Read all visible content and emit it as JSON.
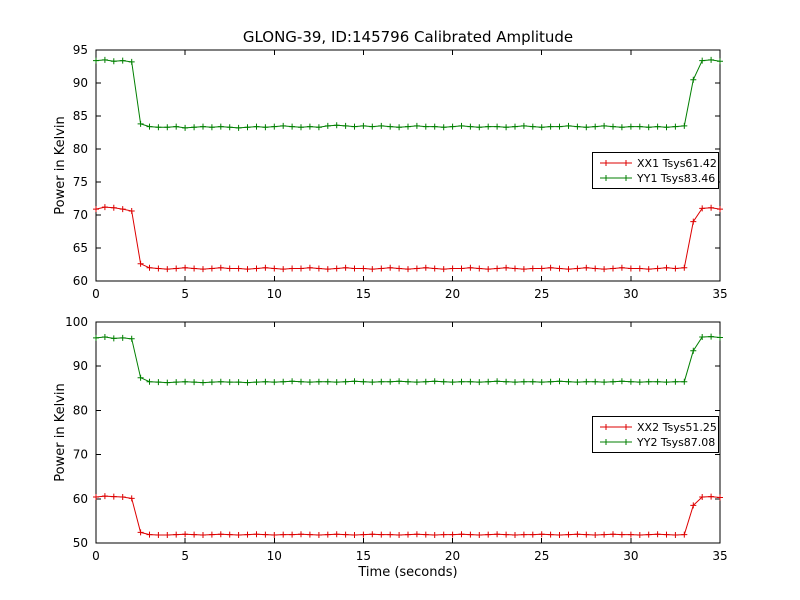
{
  "chart_data": [
    {
      "type": "line",
      "title": "GLONG-39, ID:145796 Calibrated Amplitude",
      "xlabel": "",
      "ylabel": "Power in Kelvin",
      "xlim": [
        0,
        35
      ],
      "ylim": [
        60,
        95
      ],
      "xticks": [
        0,
        5,
        10,
        15,
        20,
        25,
        30,
        35
      ],
      "yticks": [
        60,
        65,
        70,
        75,
        80,
        85,
        90,
        95
      ],
      "grid": false,
      "legend_position": "center-right",
      "x": [
        0,
        0.5,
        1,
        1.5,
        2,
        2.5,
        3,
        3.5,
        4,
        4.5,
        5,
        5.5,
        6,
        6.5,
        7,
        7.5,
        8,
        8.5,
        9,
        9.5,
        10,
        10.5,
        11,
        11.5,
        12,
        12.5,
        13,
        13.5,
        14,
        14.5,
        15,
        15.5,
        16,
        16.5,
        17,
        17.5,
        18,
        18.5,
        19,
        19.5,
        20,
        20.5,
        21,
        21.5,
        22,
        22.5,
        23,
        23.5,
        24,
        24.5,
        25,
        25.5,
        26,
        26.5,
        27,
        27.5,
        28,
        28.5,
        29,
        29.5,
        30,
        30.5,
        31,
        31.5,
        32,
        32.5,
        33,
        33.5,
        34,
        34.5,
        35
      ],
      "series": [
        {
          "name": "XX1 Tsys61.42",
          "color": "#dd0000",
          "marker": "+",
          "values": [
            70.9,
            71.2,
            71.1,
            70.9,
            70.6,
            62.6,
            62.0,
            61.9,
            61.8,
            61.9,
            62.0,
            61.9,
            61.8,
            61.9,
            62.0,
            61.9,
            61.9,
            61.8,
            61.9,
            62.0,
            61.9,
            61.8,
            61.9,
            61.9,
            62.0,
            61.9,
            61.8,
            61.9,
            62.0,
            61.9,
            61.9,
            61.8,
            61.9,
            62.0,
            61.9,
            61.8,
            61.9,
            62.0,
            61.9,
            61.8,
            61.9,
            61.9,
            62.0,
            61.9,
            61.8,
            61.9,
            62.0,
            61.9,
            61.8,
            61.9,
            61.9,
            62.0,
            61.9,
            61.8,
            61.9,
            62.0,
            61.9,
            61.8,
            61.9,
            62.0,
            61.9,
            61.9,
            61.8,
            61.9,
            62.0,
            61.9,
            62.0,
            69.0,
            71.0,
            71.1,
            70.9
          ]
        },
        {
          "name": "YY1 Tsys83.46",
          "color": "#007f00",
          "marker": "+",
          "values": [
            93.4,
            93.5,
            93.3,
            93.4,
            93.2,
            83.8,
            83.4,
            83.3,
            83.3,
            83.4,
            83.2,
            83.3,
            83.4,
            83.3,
            83.4,
            83.3,
            83.2,
            83.3,
            83.4,
            83.3,
            83.4,
            83.5,
            83.4,
            83.3,
            83.4,
            83.3,
            83.5,
            83.6,
            83.5,
            83.4,
            83.5,
            83.4,
            83.5,
            83.4,
            83.3,
            83.4,
            83.5,
            83.4,
            83.4,
            83.3,
            83.4,
            83.5,
            83.4,
            83.3,
            83.4,
            83.4,
            83.3,
            83.4,
            83.5,
            83.4,
            83.3,
            83.4,
            83.4,
            83.5,
            83.4,
            83.3,
            83.4,
            83.5,
            83.4,
            83.3,
            83.4,
            83.4,
            83.3,
            83.4,
            83.3,
            83.4,
            83.5,
            90.5,
            93.4,
            93.5,
            93.3
          ]
        }
      ]
    },
    {
      "type": "line",
      "title": "",
      "xlabel": "Time (seconds)",
      "ylabel": "Power in Kelvin",
      "xlim": [
        0,
        35
      ],
      "ylim": [
        50,
        100
      ],
      "xticks": [
        0,
        5,
        10,
        15,
        20,
        25,
        30,
        35
      ],
      "yticks": [
        50,
        60,
        70,
        80,
        90,
        100
      ],
      "grid": false,
      "legend_position": "center-right",
      "x": [
        0,
        0.5,
        1,
        1.5,
        2,
        2.5,
        3,
        3.5,
        4,
        4.5,
        5,
        5.5,
        6,
        6.5,
        7,
        7.5,
        8,
        8.5,
        9,
        9.5,
        10,
        10.5,
        11,
        11.5,
        12,
        12.5,
        13,
        13.5,
        14,
        14.5,
        15,
        15.5,
        16,
        16.5,
        17,
        17.5,
        18,
        18.5,
        19,
        19.5,
        20,
        20.5,
        21,
        21.5,
        22,
        22.5,
        23,
        23.5,
        24,
        24.5,
        25,
        25.5,
        26,
        26.5,
        27,
        27.5,
        28,
        28.5,
        29,
        29.5,
        30,
        30.5,
        31,
        31.5,
        32,
        32.5,
        33,
        33.5,
        34,
        34.5,
        35
      ],
      "series": [
        {
          "name": "XX2 Tsys51.25",
          "color": "#dd0000",
          "marker": "+",
          "values": [
            60.4,
            60.6,
            60.5,
            60.4,
            60.1,
            52.4,
            51.9,
            51.8,
            51.8,
            51.9,
            52.0,
            51.9,
            51.8,
            51.9,
            52.0,
            51.9,
            51.8,
            51.9,
            52.0,
            51.9,
            51.8,
            51.9,
            51.9,
            52.0,
            51.9,
            51.8,
            51.9,
            52.0,
            51.9,
            51.8,
            51.9,
            52.0,
            51.9,
            51.9,
            51.8,
            51.9,
            52.0,
            51.9,
            51.8,
            51.9,
            51.9,
            52.0,
            51.9,
            51.8,
            51.9,
            52.0,
            51.9,
            51.8,
            51.9,
            51.9,
            52.0,
            51.9,
            51.8,
            51.9,
            52.0,
            51.9,
            51.8,
            51.9,
            52.0,
            51.9,
            51.9,
            51.8,
            51.9,
            52.0,
            51.9,
            51.8,
            51.9,
            58.5,
            60.4,
            60.5,
            60.3
          ]
        },
        {
          "name": "YY2 Tsys87.08",
          "color": "#007f00",
          "marker": "+",
          "values": [
            96.4,
            96.6,
            96.3,
            96.4,
            96.2,
            87.4,
            86.5,
            86.4,
            86.3,
            86.4,
            86.5,
            86.4,
            86.3,
            86.4,
            86.5,
            86.4,
            86.4,
            86.3,
            86.4,
            86.5,
            86.4,
            86.5,
            86.6,
            86.5,
            86.4,
            86.5,
            86.5,
            86.4,
            86.5,
            86.6,
            86.5,
            86.4,
            86.5,
            86.5,
            86.6,
            86.5,
            86.4,
            86.5,
            86.6,
            86.5,
            86.4,
            86.5,
            86.5,
            86.4,
            86.5,
            86.6,
            86.5,
            86.4,
            86.5,
            86.5,
            86.4,
            86.5,
            86.6,
            86.5,
            86.4,
            86.5,
            86.5,
            86.4,
            86.5,
            86.6,
            86.5,
            86.4,
            86.5,
            86.5,
            86.4,
            86.5,
            86.5,
            93.5,
            96.6,
            96.7,
            96.5
          ]
        }
      ]
    }
  ]
}
